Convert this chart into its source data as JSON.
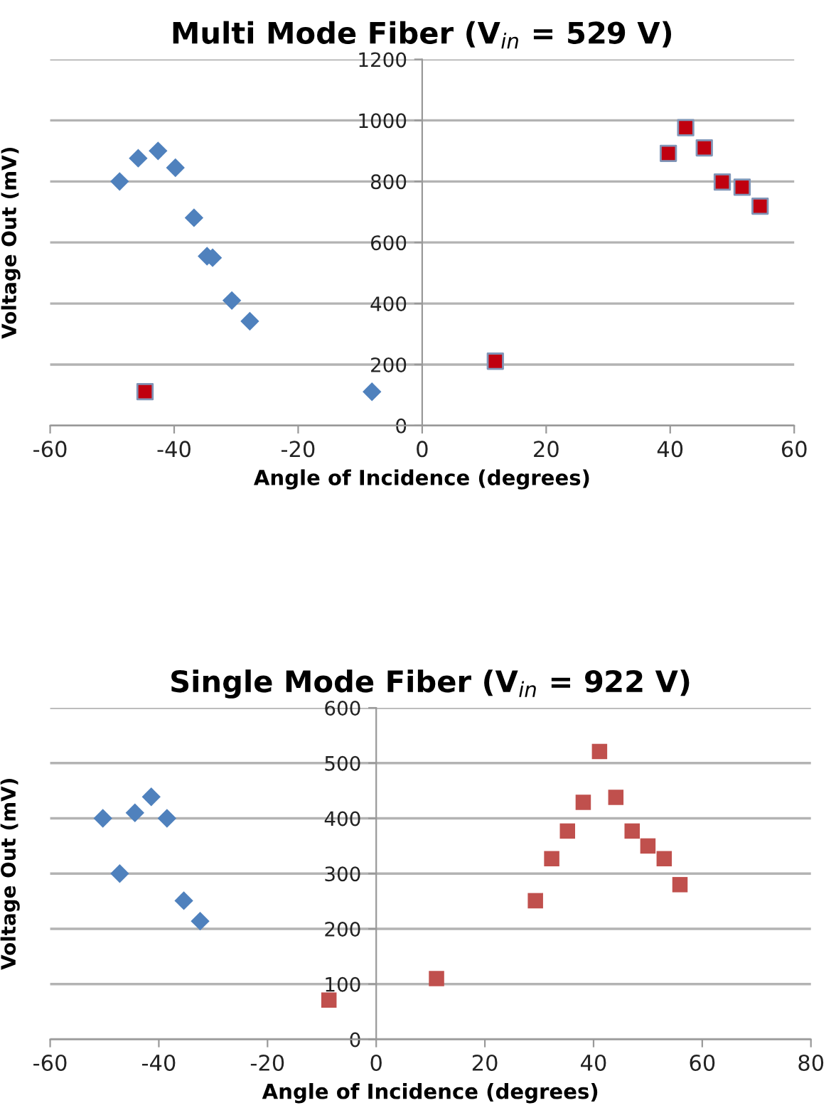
{
  "chart_data": [
    {
      "type": "scatter",
      "title": "Multi Mode Fiber (V$_{in}$ = 529 V)",
      "xlabel": "Angle of Incidence (degrees)",
      "ylabel": "Voltage Out (mV)",
      "xlim": [
        -60,
        60
      ],
      "xticks": [
        -60,
        -40,
        -20,
        0,
        20,
        40,
        60
      ],
      "ylim": [
        0,
        1200
      ],
      "yticks": [
        0,
        200,
        400,
        600,
        800,
        1000,
        1200
      ],
      "grid": "y",
      "legend": false,
      "series": [
        {
          "color": "#4f81bd",
          "marker": "diamond",
          "x": [
            -48.8,
            -45.8,
            -42.6,
            -39.8,
            -36.8,
            -34.7,
            -33.8,
            -30.7,
            -27.8,
            -8.1
          ],
          "values": [
            800,
            876,
            900,
            845,
            681,
            555,
            550,
            410,
            342,
            111
          ]
        },
        {
          "color": "#c0000f",
          "marker": "square",
          "x": [
            -44.7,
            11.8,
            39.7,
            42.5,
            45.5,
            48.4,
            51.6,
            54.5
          ],
          "values": [
            111,
            211,
            892,
            976,
            910,
            798,
            781,
            719
          ]
        }
      ]
    },
    {
      "type": "scatter",
      "title": "Single Mode Fiber (V$_{in}$ = 922 V)",
      "xlabel": "Angle of Incidence (degrees)",
      "ylabel": "Voltage Out (mV)",
      "xlim": [
        -60,
        80
      ],
      "xticks": [
        -60,
        -40,
        -20,
        0,
        20,
        40,
        60,
        80
      ],
      "ylim": [
        0,
        600
      ],
      "yticks": [
        0,
        100,
        200,
        300,
        400,
        500,
        600
      ],
      "grid": "y",
      "legend": false,
      "series": [
        {
          "color": "#4f81bd",
          "marker": "diamond",
          "x": [
            -50.3,
            -47.2,
            -44.4,
            -41.4,
            -38.5,
            -35.4,
            -32.4
          ],
          "values": [
            400,
            300,
            410,
            439,
            400,
            251,
            214
          ]
        },
        {
          "color": "#c0504d",
          "marker": "square",
          "x": [
            -8.7,
            11.1,
            29.3,
            32.3,
            35.2,
            38.1,
            41.1,
            44.1,
            47.1,
            50.0,
            53.0,
            55.9
          ],
          "values": [
            71,
            110,
            251,
            327,
            377,
            429,
            521,
            438,
            377,
            350,
            327,
            280
          ]
        }
      ]
    }
  ]
}
